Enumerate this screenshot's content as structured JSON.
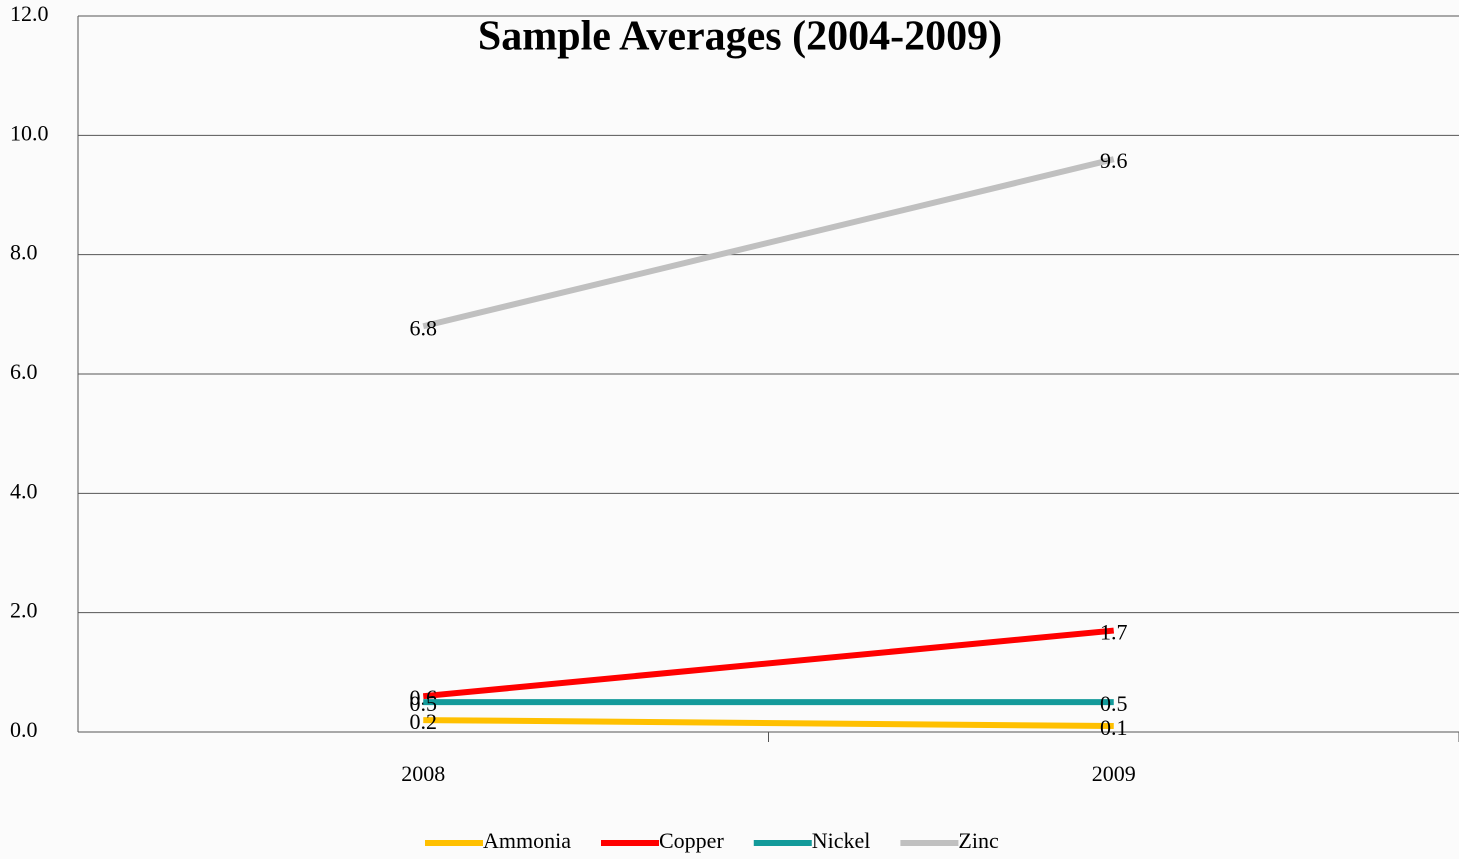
{
  "chart_data": {
    "type": "line",
    "title": "Sample Averages (2004-2009)",
    "categories": [
      "2008",
      "2009"
    ],
    "series": [
      {
        "name": "Ammonia",
        "color": "#ffc000",
        "values": [
          0.2,
          0.1
        ]
      },
      {
        "name": "Copper",
        "color": "#ff0000",
        "values": [
          0.6,
          1.7
        ]
      },
      {
        "name": "Nickel",
        "color": "#139a9a",
        "values": [
          0.5,
          0.5
        ]
      },
      {
        "name": "Zinc",
        "color": "#c0c0c0",
        "values": [
          6.8,
          9.6
        ]
      }
    ],
    "ylim": [
      0,
      12
    ],
    "yticks": [
      {
        "value": 0,
        "label": "0.0"
      },
      {
        "value": 2,
        "label": "2.0"
      },
      {
        "value": 4,
        "label": "4.0"
      },
      {
        "value": 6,
        "label": "6.0"
      },
      {
        "value": 8,
        "label": "8.0"
      },
      {
        "value": 10,
        "label": "10.0"
      },
      {
        "value": 12,
        "label": "12.0"
      }
    ],
    "grid": true,
    "legend": "bottom"
  }
}
